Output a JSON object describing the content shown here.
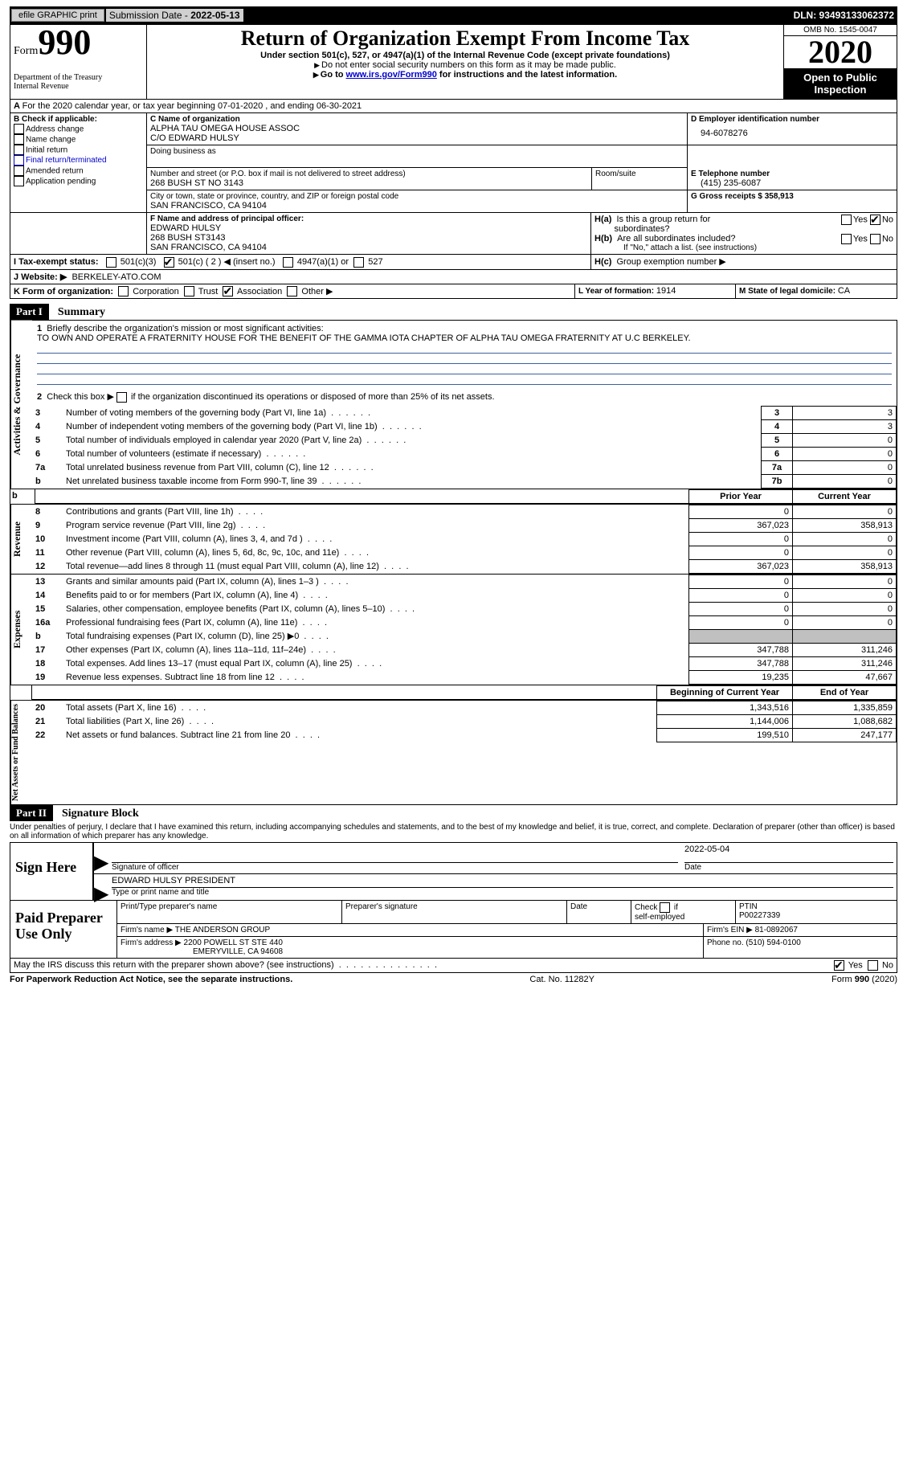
{
  "topbar": {
    "efile": "efile GRAPHIC print",
    "subLabel": "Submission Date - ",
    "subDate": "2022-05-13",
    "dln": "DLN: 93493133062372"
  },
  "header": {
    "formWord": "Form",
    "formNum": "990",
    "dept": "Department of the Treasury\nInternal Revenue",
    "title": "Return of Organization Exempt From Income Tax",
    "sub1": "Under section 501(c), 527, or 4947(a)(1) of the Internal Revenue Code (except private foundations)",
    "sub2": "Do not enter social security numbers on this form as it may be made public.",
    "sub3a": "Go to ",
    "sub3link": "www.irs.gov/Form990",
    "sub3b": " for instructions and the latest information.",
    "omb": "OMB No. 1545-0047",
    "year": "2020",
    "open": "Open to Public Inspection"
  },
  "a": {
    "line": "For the 2020 calendar year, or tax year beginning 07-01-2020   , and ending 06-30-2021"
  },
  "b": {
    "label": "B Check if applicable:",
    "opts": [
      "Address change",
      "Name change",
      "Initial return",
      "Final return/terminated",
      "Amended return",
      "Application pending"
    ]
  },
  "c": {
    "label": "C Name of organization",
    "name": "ALPHA TAU OMEGA HOUSE ASSOC",
    "co": "C/O EDWARD HULSY",
    "dba": "Doing business as",
    "addrLabel": "Number and street (or P.O. box if mail is not delivered to street address)",
    "room": "Room/suite",
    "addr": "268 BUSH ST NO 3143",
    "cityLabel": "City or town, state or province, country, and ZIP or foreign postal code",
    "city": "SAN FRANCISCO, CA  94104"
  },
  "d": {
    "label": "D Employer identification number",
    "value": "94-6078276"
  },
  "e": {
    "label": "E Telephone number",
    "value": "(415) 235-6087"
  },
  "g": {
    "label": "G Gross receipts $ ",
    "value": "358,913"
  },
  "f": {
    "label": "F Name and address of principal officer:",
    "name": "EDWARD HULSY",
    "addr1": "268 BUSH ST3143",
    "addr2": "SAN FRANCISCO, CA  94104"
  },
  "h": {
    "ha": "H(a)  Is this a group return for subordinates?",
    "hb": "H(b)  Are all subordinates included?",
    "hbNote": "If \"No,\" attach a list. (see instructions)",
    "hc": "H(c)  Group exemption number ▶",
    "yes": "Yes",
    "no": "No"
  },
  "i": {
    "label": "I    Tax-exempt status:",
    "c3": "501(c)(3)",
    "c": "501(c) ( 2 ) ◀ (insert no.)",
    "a4947": "4947(a)(1) or",
    "s527": "527"
  },
  "j": {
    "label": "J    Website: ▶",
    "value": "BERKELEY-ATO.COM"
  },
  "k": {
    "label": "K Form of organization:",
    "corp": "Corporation",
    "trust": "Trust",
    "assoc": "Association",
    "other": "Other ▶"
  },
  "l": {
    "label": "L Year of formation: ",
    "value": "1914"
  },
  "m": {
    "label": "M State of legal domicile: ",
    "value": "CA"
  },
  "part1": {
    "tag": "Part I",
    "title": "Summary",
    "sideA": "Activities & Governance",
    "sideR": "Revenue",
    "sideE": "Expenses",
    "sideN": "Net Assets or Fund Balances",
    "l1": "Briefly describe the organization's mission or most significant activities:",
    "mission": "TO OWN AND OPERATE A FRATERNITY HOUSE FOR THE BENEFIT OF THE GAMMA IOTA CHAPTER OF ALPHA TAU OMEGA FRATERNITY AT U.C BERKELEY.",
    "l2": "Check this box ▶        if the organization discontinued its operations or disposed of more than 25% of its net assets.",
    "priorYear": "Prior Year",
    "currentYear": "Current Year",
    "beginYear": "Beginning of Current Year",
    "endYear": "End of Year",
    "rows1": [
      {
        "n": "3",
        "t": "Number of voting members of the governing body (Part VI, line 1a)",
        "ln": "3",
        "v": "3"
      },
      {
        "n": "4",
        "t": "Number of independent voting members of the governing body (Part VI, line 1b)",
        "ln": "4",
        "v": "3"
      },
      {
        "n": "5",
        "t": "Total number of individuals employed in calendar year 2020 (Part V, line 2a)",
        "ln": "5",
        "v": "0"
      },
      {
        "n": "6",
        "t": "Total number of volunteers (estimate if necessary)",
        "ln": "6",
        "v": "0"
      },
      {
        "n": "7a",
        "t": "Total unrelated business revenue from Part VIII, column (C), line 12",
        "ln": "7a",
        "v": "0"
      },
      {
        "n": "b",
        "t": "Net unrelated business taxable income from Form 990-T, line 39",
        "ln": "7b",
        "v": "0"
      }
    ],
    "rows2": [
      {
        "n": "8",
        "t": "Contributions and grants (Part VIII, line 1h)",
        "p": "0",
        "c": "0"
      },
      {
        "n": "9",
        "t": "Program service revenue (Part VIII, line 2g)",
        "p": "367,023",
        "c": "358,913"
      },
      {
        "n": "10",
        "t": "Investment income (Part VIII, column (A), lines 3, 4, and 7d )",
        "p": "0",
        "c": "0"
      },
      {
        "n": "11",
        "t": "Other revenue (Part VIII, column (A), lines 5, 6d, 8c, 9c, 10c, and 11e)",
        "p": "0",
        "c": "0"
      },
      {
        "n": "12",
        "t": "Total revenue—add lines 8 through 11 (must equal Part VIII, column (A), line 12)",
        "p": "367,023",
        "c": "358,913"
      }
    ],
    "rows3": [
      {
        "n": "13",
        "t": "Grants and similar amounts paid (Part IX, column (A), lines 1–3 )",
        "p": "0",
        "c": "0"
      },
      {
        "n": "14",
        "t": "Benefits paid to or for members (Part IX, column (A), line 4)",
        "p": "0",
        "c": "0"
      },
      {
        "n": "15",
        "t": "Salaries, other compensation, employee benefits (Part IX, column (A), lines 5–10)",
        "p": "0",
        "c": "0"
      },
      {
        "n": "16a",
        "t": "Professional fundraising fees (Part IX, column (A), line 11e)",
        "p": "0",
        "c": "0"
      },
      {
        "n": "b",
        "t": "Total fundraising expenses (Part IX, column (D), line 25) ▶0",
        "p": "",
        "c": ""
      },
      {
        "n": "17",
        "t": "Other expenses (Part IX, column (A), lines 11a–11d, 11f–24e)",
        "p": "347,788",
        "c": "311,246"
      },
      {
        "n": "18",
        "t": "Total expenses. Add lines 13–17 (must equal Part IX, column (A), line 25)",
        "p": "347,788",
        "c": "311,246"
      },
      {
        "n": "19",
        "t": "Revenue less expenses. Subtract line 18 from line 12",
        "p": "19,235",
        "c": "47,667"
      }
    ],
    "rows4": [
      {
        "n": "20",
        "t": "Total assets (Part X, line 16)",
        "p": "1,343,516",
        "c": "1,335,859"
      },
      {
        "n": "21",
        "t": "Total liabilities (Part X, line 26)",
        "p": "1,144,006",
        "c": "1,088,682"
      },
      {
        "n": "22",
        "t": "Net assets or fund balances. Subtract line 21 from line 20",
        "p": "199,510",
        "c": "247,177"
      }
    ]
  },
  "part2": {
    "tag": "Part II",
    "title": "Signature Block",
    "decl": "Under penalties of perjury, I declare that I have examined this return, including accompanying schedules and statements, and to the best of my knowledge and belief, it is true, correct, and complete. Declaration of preparer (other than officer) is based on all information of which preparer has any knowledge.",
    "signHere": "Sign Here",
    "sigOfficer": "Signature of officer",
    "date": "Date",
    "sigDate": "2022-05-04",
    "typedName": "EDWARD HULSY PRESIDENT",
    "typedLabel": "Type or print name and title",
    "paid": "Paid Preparer Use Only",
    "p_printLabel": "Print/Type preparer's name",
    "p_sigLabel": "Preparer's signature",
    "p_dateLabel": "Date",
    "p_checkLabel": "Check        if self-employed",
    "p_ptinLabel": "PTIN",
    "p_ptin": "P00227339",
    "firmNameLabel": "Firm's name    ▶",
    "firmName": "THE ANDERSON GROUP",
    "firmEinLabel": "Firm's EIN ▶",
    "firmEin": "81-0892067",
    "firmAddrLabel": "Firm's address ▶",
    "firmAddr1": "2200 POWELL ST STE 440",
    "firmAddr2": "EMERYVILLE, CA  94608",
    "phoneLabel": "Phone no. ",
    "phone": "(510) 594-0100",
    "mayIRS": "May the IRS discuss this return with the preparer shown above? (see instructions)",
    "yes": "Yes",
    "no": "No"
  },
  "footer": {
    "pra": "For Paperwork Reduction Act Notice, see the separate instructions.",
    "cat": "Cat. No. 11282Y",
    "form": "Form 990 (2020)"
  }
}
